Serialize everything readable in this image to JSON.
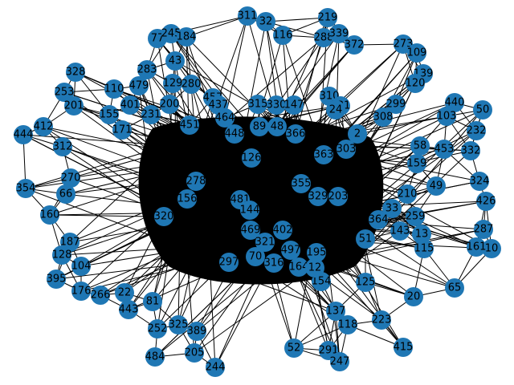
{
  "nodes": [
    {
      "label": "311"
    },
    {
      "label": "32"
    },
    {
      "label": "219"
    },
    {
      "label": "77"
    },
    {
      "label": "245"
    },
    {
      "label": "184"
    },
    {
      "label": "116"
    },
    {
      "label": "288"
    },
    {
      "label": "339"
    },
    {
      "label": "372"
    },
    {
      "label": "273"
    },
    {
      "label": "109"
    },
    {
      "label": "328"
    },
    {
      "label": "283"
    },
    {
      "label": "43"
    },
    {
      "label": "139"
    },
    {
      "label": "120"
    },
    {
      "label": "253"
    },
    {
      "label": "110"
    },
    {
      "label": "479"
    },
    {
      "label": "129"
    },
    {
      "label": "280"
    },
    {
      "label": "457"
    },
    {
      "label": "440"
    },
    {
      "label": "50"
    },
    {
      "label": "412"
    },
    {
      "label": "201"
    },
    {
      "label": "401"
    },
    {
      "label": "231"
    },
    {
      "label": "200"
    },
    {
      "label": "437"
    },
    {
      "label": "315"
    },
    {
      "label": "330"
    },
    {
      "label": "147"
    },
    {
      "label": "310"
    },
    {
      "label": "131"
    },
    {
      "label": "444"
    },
    {
      "label": "171"
    },
    {
      "label": "155"
    },
    {
      "label": "451"
    },
    {
      "label": "464"
    },
    {
      "label": "89"
    },
    {
      "label": "48"
    },
    {
      "label": "366"
    },
    {
      "label": "24"
    },
    {
      "label": "232"
    },
    {
      "label": "332"
    },
    {
      "label": "312"
    },
    {
      "label": "448"
    },
    {
      "label": "126"
    },
    {
      "label": "363"
    },
    {
      "label": "303"
    },
    {
      "label": "354"
    },
    {
      "label": "270"
    },
    {
      "label": "49"
    },
    {
      "label": "324"
    },
    {
      "label": "426"
    },
    {
      "label": "160"
    },
    {
      "label": "66"
    },
    {
      "label": "355"
    },
    {
      "label": "329"
    },
    {
      "label": "203"
    },
    {
      "label": "481"
    },
    {
      "label": "144"
    },
    {
      "label": "320"
    },
    {
      "label": "156"
    },
    {
      "label": "278"
    },
    {
      "label": "287"
    },
    {
      "label": "10"
    },
    {
      "label": "161"
    },
    {
      "label": "187"
    },
    {
      "label": "128"
    },
    {
      "label": "469"
    },
    {
      "label": "402"
    },
    {
      "label": "321"
    },
    {
      "label": "497"
    },
    {
      "label": "70"
    },
    {
      "label": "297"
    },
    {
      "label": "65"
    },
    {
      "label": "20"
    },
    {
      "label": "395"
    },
    {
      "label": "104"
    },
    {
      "label": "176"
    },
    {
      "label": "266"
    },
    {
      "label": "22"
    },
    {
      "label": "443"
    },
    {
      "label": "81"
    },
    {
      "label": "325"
    },
    {
      "label": "252"
    },
    {
      "label": "389"
    },
    {
      "label": "484"
    },
    {
      "label": "205"
    },
    {
      "label": "244"
    },
    {
      "label": "52"
    },
    {
      "label": "291"
    },
    {
      "label": "247"
    },
    {
      "label": "415"
    },
    {
      "label": "223"
    },
    {
      "label": "118"
    },
    {
      "label": "316"
    },
    {
      "label": "164"
    },
    {
      "label": "195"
    },
    {
      "label": "154"
    },
    {
      "label": "137"
    },
    {
      "label": "125"
    },
    {
      "label": "12"
    },
    {
      "label": "51"
    },
    {
      "label": "115"
    },
    {
      "label": "13"
    },
    {
      "label": "143"
    },
    {
      "label": "259"
    },
    {
      "label": "33"
    },
    {
      "label": "210"
    },
    {
      "label": "2"
    },
    {
      "label": "308"
    },
    {
      "label": "159"
    },
    {
      "label": "58"
    },
    {
      "label": "453"
    },
    {
      "label": "103"
    },
    {
      "label": "299"
    },
    {
      "label": "364"
    }
  ]
}
